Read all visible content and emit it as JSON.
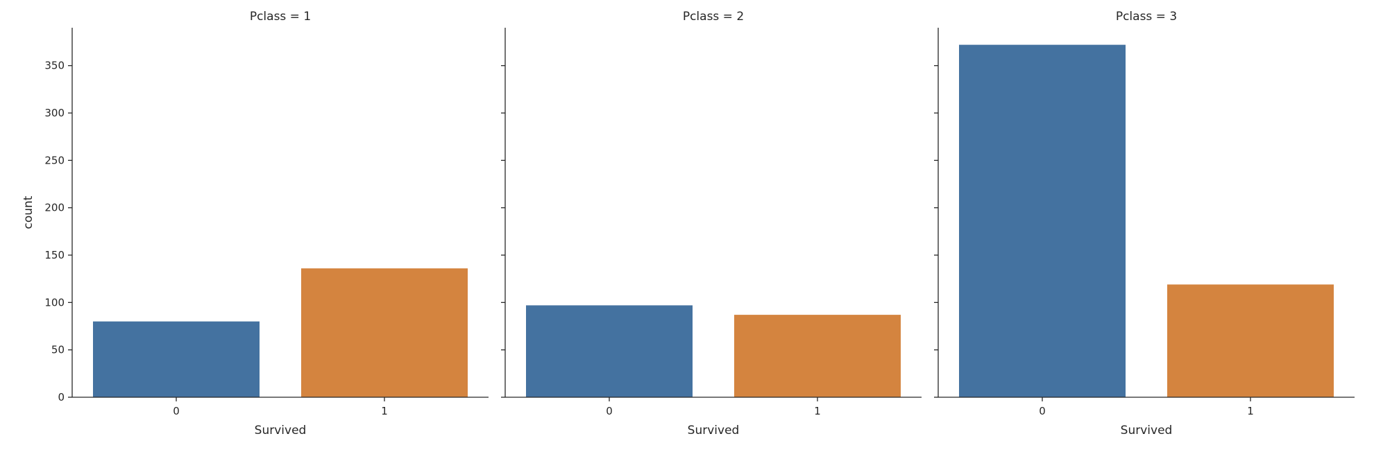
{
  "chart_data": {
    "type": "bar",
    "facet": "Pclass",
    "shared_y": true,
    "ylabel": "count",
    "ylim": [
      0,
      390
    ],
    "yticks": [
      0,
      50,
      100,
      150,
      200,
      250,
      300,
      350
    ],
    "colors": {
      "0": "#4472a0",
      "1": "#d4843f"
    },
    "panels": [
      {
        "title": "Pclass = 1",
        "xlabel": "Survived",
        "categories": [
          "0",
          "1"
        ],
        "values": [
          80,
          136
        ]
      },
      {
        "title": "Pclass = 2",
        "xlabel": "Survived",
        "categories": [
          "0",
          "1"
        ],
        "values": [
          97,
          87
        ]
      },
      {
        "title": "Pclass = 3",
        "xlabel": "Survived",
        "categories": [
          "0",
          "1"
        ],
        "values": [
          372,
          119
        ]
      }
    ]
  }
}
